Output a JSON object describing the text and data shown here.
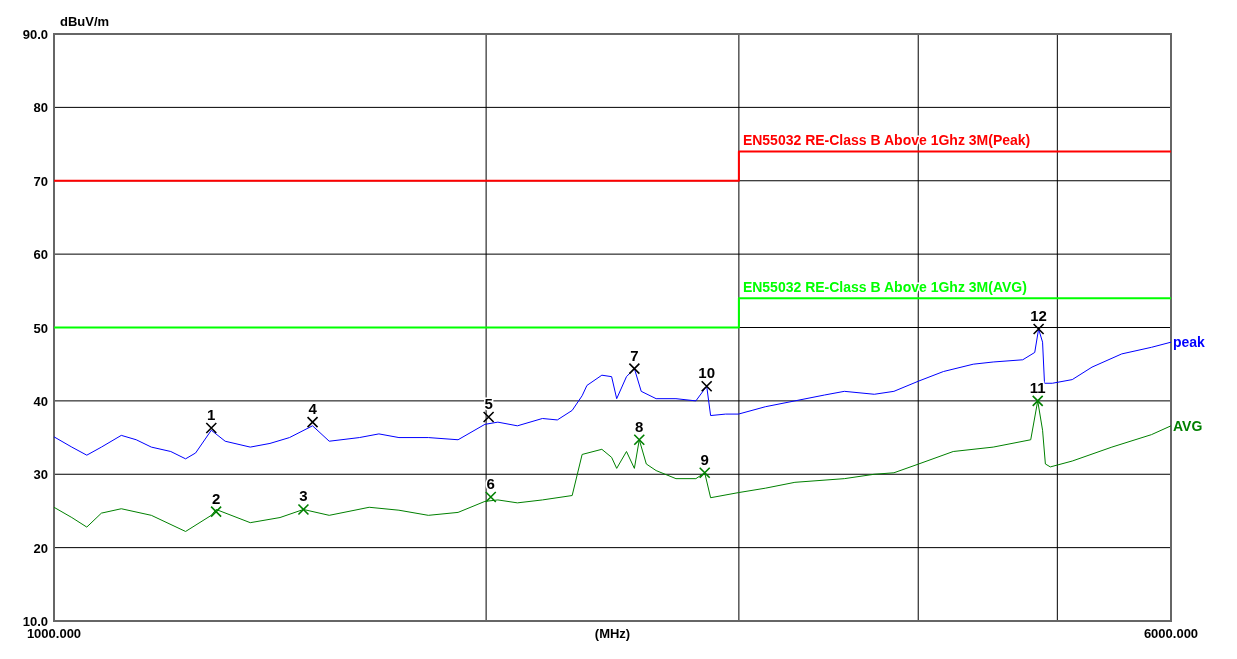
{
  "chart_data": {
    "type": "line",
    "xlabel": "(MHz)",
    "ylabel": "dBuV/m",
    "log": "x",
    "xlim": [
      1000,
      6000
    ],
    "xticks": [
      {
        "value": 1000,
        "label": "1000.000"
      },
      {
        "value": 2000,
        "label": null
      },
      {
        "value": 3000,
        "label": null
      },
      {
        "value": 4000,
        "label": null
      },
      {
        "value": 5000,
        "label": null
      },
      {
        "value": 6000,
        "label": "6000.000"
      }
    ],
    "ylim": [
      10,
      90
    ],
    "yticks": [
      {
        "value": 10,
        "label": "10.0"
      },
      20,
      30,
      40,
      50,
      60,
      70,
      80,
      {
        "value": 90,
        "label": "90.0"
      }
    ],
    "grid": true,
    "series": [
      {
        "name": "EN55032 RE-Class B Above 1Ghz 3M(Peak)",
        "type": "step",
        "color": "#ff0000",
        "x": [
          1000,
          3000,
          6000
        ],
        "values": [
          70,
          74,
          74
        ]
      },
      {
        "name": "EN55032 RE-Class B Above 1Ghz 3M(AVG)",
        "type": "step",
        "color": "#00ff00",
        "x": [
          1000,
          3000,
          6000
        ],
        "values": [
          50,
          54,
          54
        ]
      },
      {
        "name": "peak",
        "color": "#0000ff",
        "x": [
          1000,
          1029,
          1054,
          1079,
          1114,
          1141,
          1169,
          1206,
          1235,
          1255,
          1287,
          1316,
          1370,
          1414,
          1459,
          1514,
          1555,
          1632,
          1684,
          1739,
          1823,
          1912,
          1996,
          2038,
          2103,
          2189,
          2242,
          2296,
          2333,
          2351,
          2408,
          2446,
          2466,
          2505,
          2537,
          2565,
          2627,
          2712,
          2800,
          2849,
          2867,
          2937,
          2998,
          3130,
          3282,
          3442,
          3553,
          3728,
          3847,
          4003,
          4165,
          4369,
          4511,
          4730,
          4822,
          4852,
          4883,
          4898,
          4960,
          5121,
          5286,
          5544,
          5815,
          6000
        ],
        "values": [
          35.1,
          33.7,
          32.6,
          33.7,
          35.3,
          34.7,
          33.7,
          33.1,
          32.1,
          32.9,
          36.0,
          34.5,
          33.7,
          34.2,
          35.0,
          36.6,
          34.5,
          35.0,
          35.5,
          35.0,
          35.0,
          34.7,
          36.8,
          37.1,
          36.6,
          37.6,
          37.4,
          38.7,
          40.7,
          42.1,
          43.5,
          43.3,
          40.3,
          43.3,
          44.4,
          41.3,
          40.3,
          40.3,
          40.0,
          42.0,
          38.0,
          38.2,
          38.2,
          39.2,
          40.0,
          40.8,
          41.3,
          40.9,
          41.3,
          42.7,
          44.0,
          45.0,
          45.3,
          45.6,
          46.6,
          49.8,
          48.0,
          42.4,
          42.4,
          42.9,
          44.6,
          46.4,
          47.3,
          48.0
        ]
      },
      {
        "name": "AVG",
        "color": "#008000",
        "x": [
          1000,
          1029,
          1054,
          1079,
          1114,
          1169,
          1235,
          1287,
          1297,
          1370,
          1437,
          1492,
          1555,
          1658,
          1739,
          1823,
          1912,
          1996,
          2038,
          2103,
          2189,
          2296,
          2333,
          2408,
          2446,
          2466,
          2505,
          2537,
          2557,
          2586,
          2627,
          2712,
          2800,
          2840,
          2867,
          2998,
          3130,
          3282,
          3553,
          3728,
          3847,
          4003,
          4231,
          4511,
          4791,
          4845,
          4883,
          4905,
          4944,
          5121,
          5457,
          5815,
          6000
        ],
        "values": [
          25.5,
          24.1,
          22.8,
          24.7,
          25.3,
          24.4,
          22.2,
          24.4,
          25.2,
          23.4,
          24.1,
          25.2,
          24.4,
          25.5,
          25.1,
          24.4,
          24.8,
          26.3,
          26.5,
          26.1,
          26.5,
          27.1,
          32.7,
          33.4,
          32.3,
          30.8,
          33.1,
          30.8,
          34.7,
          31.4,
          30.5,
          29.4,
          29.4,
          30.2,
          26.8,
          27.5,
          28.1,
          28.9,
          29.4,
          30.0,
          30.2,
          31.4,
          33.1,
          33.7,
          34.7,
          40.0,
          36.0,
          31.4,
          31.0,
          31.8,
          33.7,
          35.4,
          36.6
        ]
      },
      {
        "type": "scatter",
        "marker": "cross",
        "color": "#000000",
        "x": [
          1287,
          1514,
          2008,
          2537,
          2849,
          4852
        ],
        "values": [
          36.3,
          37.1,
          37.8,
          44.4,
          42.0,
          49.8
        ]
      },
      {
        "type": "scatter",
        "marker": "cross",
        "color": "#008000",
        "x": [
          1297,
          1492,
          2015,
          2557,
          2840,
          4845
        ],
        "values": [
          24.9,
          25.2,
          26.9,
          34.7,
          30.2,
          40.0
        ]
      }
    ],
    "annotations": [
      {
        "text": "1",
        "x": 1287,
        "y": 36.3
      },
      {
        "text": "2",
        "x": 1297,
        "y": 24.9
      },
      {
        "text": "3",
        "x": 1492,
        "y": 25.2
      },
      {
        "text": "4",
        "x": 1514,
        "y": 37.1
      },
      {
        "text": "5",
        "x": 2008,
        "y": 37.8
      },
      {
        "text": "6",
        "x": 2015,
        "y": 26.9
      },
      {
        "text": "7",
        "x": 2537,
        "y": 44.4
      },
      {
        "text": "8",
        "x": 2557,
        "y": 34.7
      },
      {
        "text": "9",
        "x": 2840,
        "y": 30.2
      },
      {
        "text": "10",
        "x": 2849,
        "y": 42.0
      },
      {
        "text": "11",
        "x": 4845,
        "y": 40.0
      },
      {
        "text": "12",
        "x": 4852,
        "y": 49.8
      }
    ]
  }
}
